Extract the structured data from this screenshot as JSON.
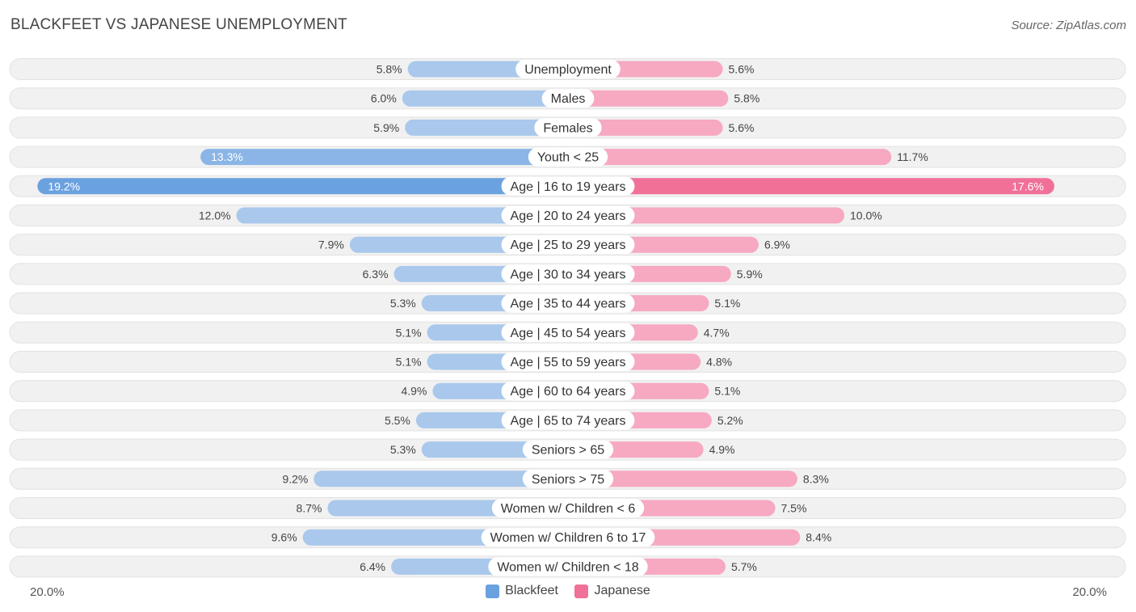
{
  "title": "BLACKFEET VS JAPANESE UNEMPLOYMENT",
  "source": "Source: ZipAtlas.com",
  "colors": {
    "blackfeet_light": "#a9c8ec",
    "blackfeet_strong": "#6aa1df",
    "japanese_light": "#f6a9c1",
    "japanese_strong": "#f07098",
    "row_bg": "#f1f1f1"
  },
  "chart_data": {
    "type": "bar",
    "orientation": "horizontal-diverging",
    "categories": [
      "Unemployment",
      "Males",
      "Females",
      "Youth < 25",
      "Age | 16 to 19 years",
      "Age | 20 to 24 years",
      "Age | 25 to 29 years",
      "Age | 30 to 34 years",
      "Age | 35 to 44 years",
      "Age | 45 to 54 years",
      "Age | 55 to 59 years",
      "Age | 60 to 64 years",
      "Age | 65 to 74 years",
      "Seniors > 65",
      "Seniors > 75",
      "Women w/ Children < 6",
      "Women w/ Children 6 to 17",
      "Women w/ Children < 18"
    ],
    "series": [
      {
        "name": "Blackfeet",
        "values": [
          5.8,
          6.0,
          5.9,
          13.3,
          19.2,
          12.0,
          7.9,
          6.3,
          5.3,
          5.1,
          5.1,
          4.9,
          5.5,
          5.3,
          9.2,
          8.7,
          9.6,
          6.4
        ],
        "labels": [
          "5.8%",
          "6.0%",
          "5.9%",
          "13.3%",
          "19.2%",
          "12.0%",
          "7.9%",
          "6.3%",
          "5.3%",
          "5.1%",
          "5.1%",
          "4.9%",
          "5.5%",
          "5.3%",
          "9.2%",
          "8.7%",
          "9.6%",
          "6.4%"
        ]
      },
      {
        "name": "Japanese",
        "values": [
          5.6,
          5.8,
          5.6,
          11.7,
          17.6,
          10.0,
          6.9,
          5.9,
          5.1,
          4.7,
          4.8,
          5.1,
          5.2,
          4.9,
          8.3,
          7.5,
          8.4,
          5.7
        ],
        "labels": [
          "5.6%",
          "5.8%",
          "5.6%",
          "11.7%",
          "17.6%",
          "10.0%",
          "6.9%",
          "5.9%",
          "5.1%",
          "4.7%",
          "4.8%",
          "5.1%",
          "5.2%",
          "4.9%",
          "8.3%",
          "7.5%",
          "8.4%",
          "5.7%"
        ]
      }
    ],
    "xlim": [
      -20.0,
      20.0
    ],
    "axis_left_label": "20.0%",
    "axis_right_label": "20.0%",
    "legend_position": "bottom-center"
  },
  "legend": {
    "blackfeet": "Blackfeet",
    "japanese": "Japanese"
  }
}
